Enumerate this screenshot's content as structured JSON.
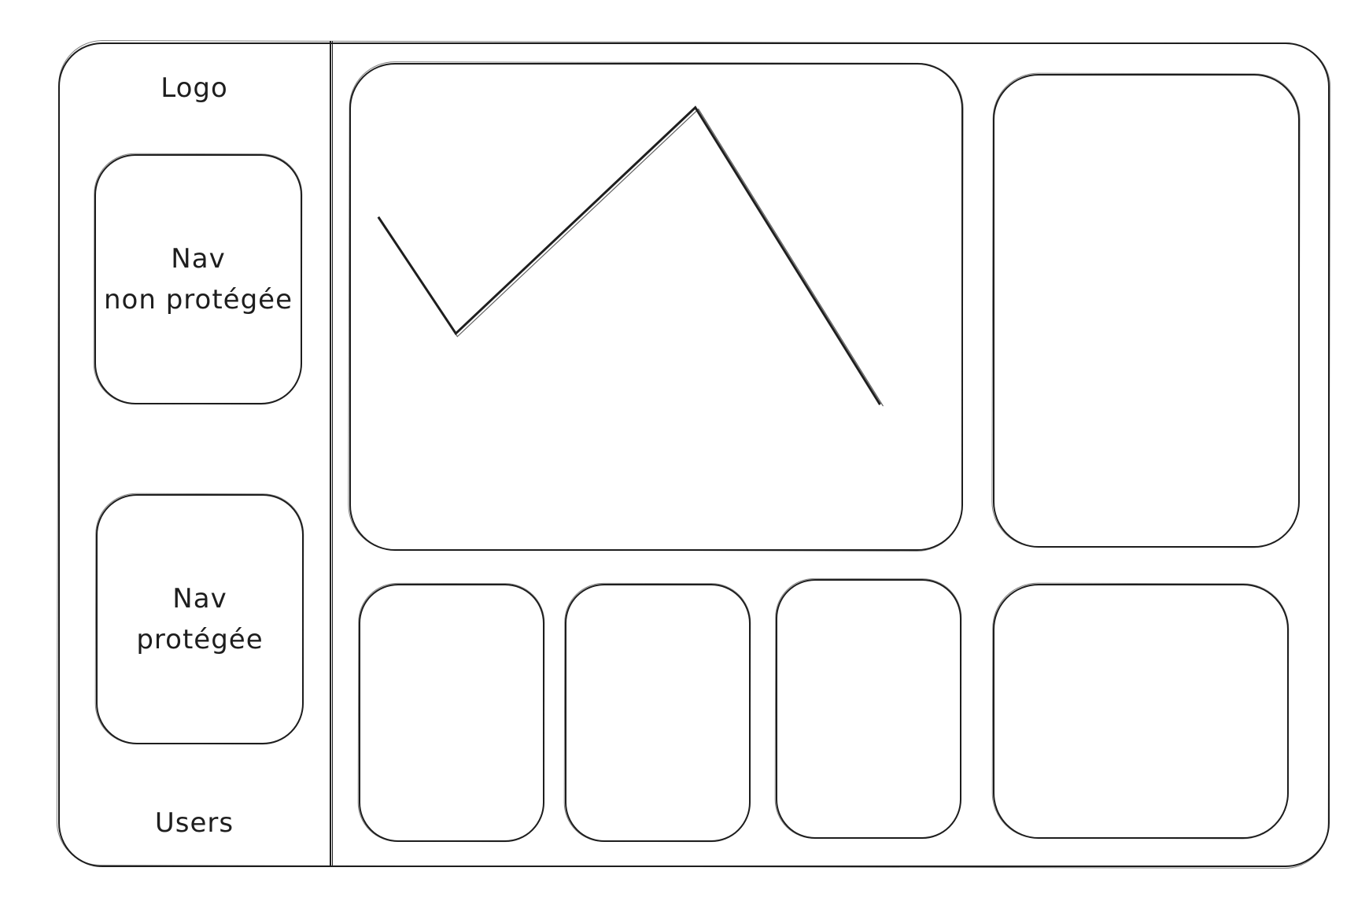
{
  "sidebar": {
    "logo_label": "Logo",
    "nav_public_label": "Nav\nnon protégée",
    "nav_protected_label": "Nav\nprotégée",
    "users_label": "Users"
  },
  "main": {
    "chart_card": {
      "polyline_shape": "zigzag-line"
    }
  },
  "colors": {
    "stroke": "#1e1e1e",
    "background": "#ffffff"
  }
}
